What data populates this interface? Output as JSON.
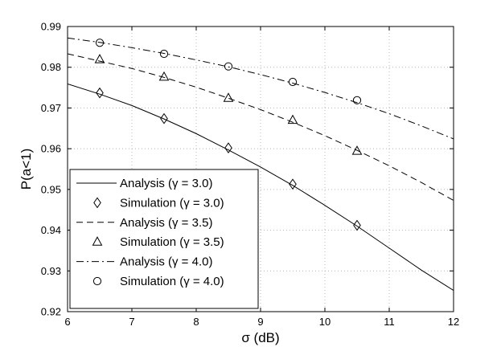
{
  "chart_data": {
    "type": "line",
    "xlabel": "σ (dB)",
    "ylabel": "P(a<1)",
    "xlim": [
      6,
      12
    ],
    "ylim": [
      0.92,
      0.99
    ],
    "xticks": [
      "6",
      "7",
      "8",
      "9",
      "10",
      "11",
      "12"
    ],
    "yticks": [
      "0.92",
      "0.93",
      "0.94",
      "0.95",
      "0.96",
      "0.97",
      "0.98",
      "0.99"
    ],
    "grid": true,
    "legend_position": "bottom-left",
    "series": [
      {
        "name": "Analysis (γ = 3.0)",
        "style": "solid",
        "x": [
          6,
          6.5,
          7,
          7.5,
          8,
          8.5,
          9,
          9.5,
          10,
          10.5,
          11,
          11.5,
          12
        ],
        "y": [
          0.9759,
          0.9734,
          0.9706,
          0.9673,
          0.9637,
          0.9597,
          0.9555,
          0.951,
          0.9461,
          0.941,
          0.9356,
          0.9302,
          0.9252
        ]
      },
      {
        "name": "Simulation (γ = 3.0)",
        "style": "marker",
        "marker": "diamond",
        "x": [
          6.5,
          7.5,
          8.5,
          9.5,
          10.5
        ],
        "y": [
          0.9737,
          0.9674,
          0.9602,
          0.9513,
          0.9412
        ]
      },
      {
        "name": "Analysis (γ = 3.5)",
        "style": "dashed",
        "x": [
          6,
          6.5,
          7,
          7.5,
          8,
          8.5,
          9,
          9.5,
          10,
          10.5,
          11,
          11.5,
          12
        ],
        "y": [
          0.9833,
          0.9815,
          0.9797,
          0.9775,
          0.9751,
          0.9724,
          0.9696,
          0.9665,
          0.9632,
          0.9596,
          0.9558,
          0.9517,
          0.9473
        ]
      },
      {
        "name": "Simulation (γ = 3.5)",
        "style": "marker",
        "marker": "triangle",
        "x": [
          6.5,
          7.5,
          8.5,
          9.5,
          10.5
        ],
        "y": [
          0.9819,
          0.9776,
          0.9724,
          0.967,
          0.9594
        ]
      },
      {
        "name": "Analysis (γ = 4.0)",
        "style": "dashdot",
        "x": [
          6,
          6.5,
          7,
          7.5,
          8,
          8.5,
          9,
          9.5,
          10,
          10.5,
          11,
          11.5,
          12
        ],
        "y": [
          0.9872,
          0.9861,
          0.9848,
          0.9834,
          0.9818,
          0.9801,
          0.9782,
          0.9761,
          0.9738,
          0.9713,
          0.9686,
          0.9656,
          0.9624
        ]
      },
      {
        "name": "Simulation (γ = 4.0)",
        "style": "marker",
        "marker": "circle",
        "x": [
          6.5,
          7.5,
          8.5,
          9.5,
          10.5
        ],
        "y": [
          0.986,
          0.9833,
          0.9802,
          0.9764,
          0.9719
        ]
      }
    ]
  }
}
